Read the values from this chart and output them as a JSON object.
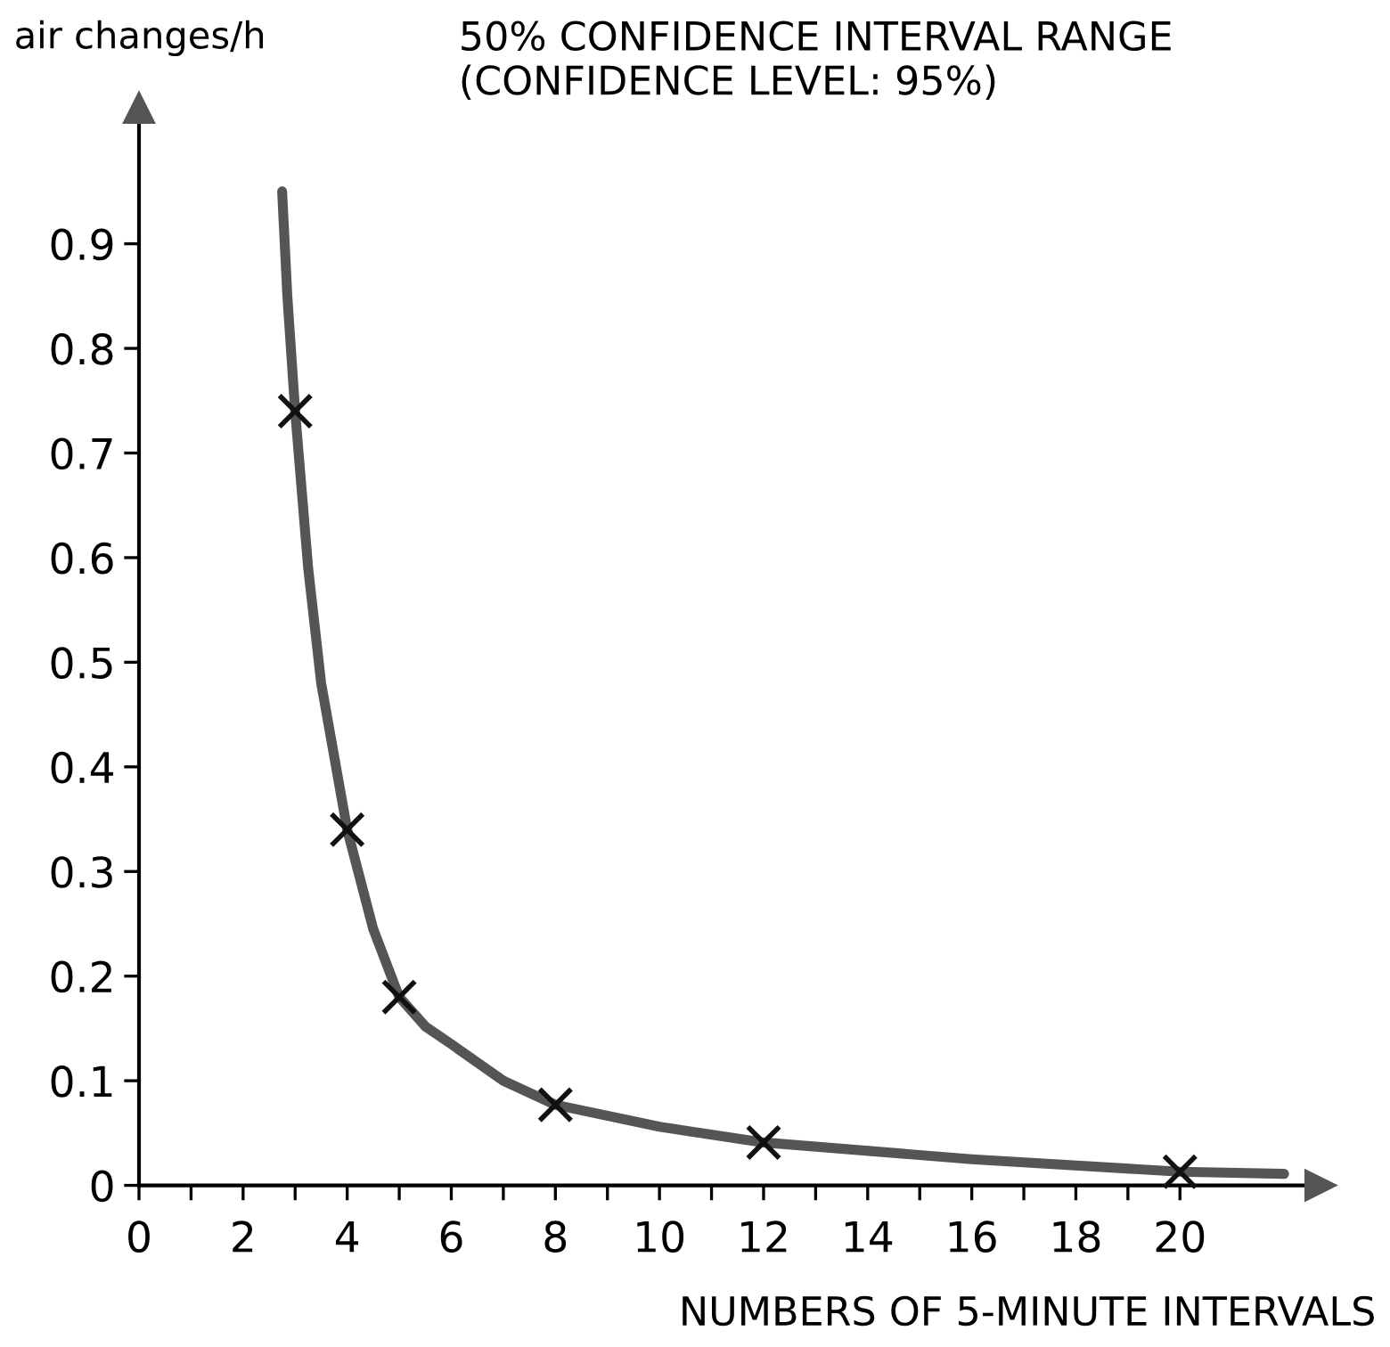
{
  "chart_data": {
    "type": "scatter",
    "title": "50% CONFIDENCE INTERVAL RANGE\n(CONFIDENCE LEVEL: 95%)",
    "xlabel": "NUMBERS OF 5-MINUTE INTERVALS",
    "ylabel": "air changes/h",
    "series": [
      {
        "type": "line",
        "color": "#555555",
        "line_style": "solid",
        "marker": "none",
        "x": [
          2.75,
          2.85,
          3,
          3.25,
          3.5,
          4,
          4.5,
          5,
          5.5,
          6,
          7,
          8,
          10,
          12,
          16,
          20,
          22
        ],
        "values": [
          0.95,
          0.85,
          0.74,
          0.59,
          0.48,
          0.34,
          0.245,
          0.18,
          0.152,
          0.135,
          0.1,
          0.077,
          0.056,
          0.041,
          0.025,
          0.013,
          0.011
        ]
      },
      {
        "color": "#111111",
        "marker": "cross",
        "x": [
          3,
          4,
          5,
          8,
          12,
          20
        ],
        "values": [
          0.74,
          0.34,
          0.18,
          0.077,
          0.041,
          0.013
        ]
      }
    ],
    "xlim": [
      0,
      22.7
    ],
    "ylim": [
      0,
      1.03
    ],
    "xticks": [
      0,
      {
        "value": 1,
        "label": null
      },
      2,
      {
        "value": 3,
        "label": null
      },
      4,
      {
        "value": 5,
        "label": null
      },
      6,
      {
        "value": 7,
        "label": null
      },
      8,
      {
        "value": 9,
        "label": null
      },
      10,
      {
        "value": 11,
        "label": null
      },
      12,
      {
        "value": 13,
        "label": null
      },
      14,
      {
        "value": 15,
        "label": null
      },
      16,
      {
        "value": 17,
        "label": null
      },
      18,
      {
        "value": 19,
        "label": null
      },
      20
    ],
    "yticks": [
      0,
      0.1,
      0.2,
      0.3,
      0.4,
      0.5,
      0.6,
      0.7,
      0.8,
      0.9
    ],
    "grid": false,
    "legend": false
  }
}
